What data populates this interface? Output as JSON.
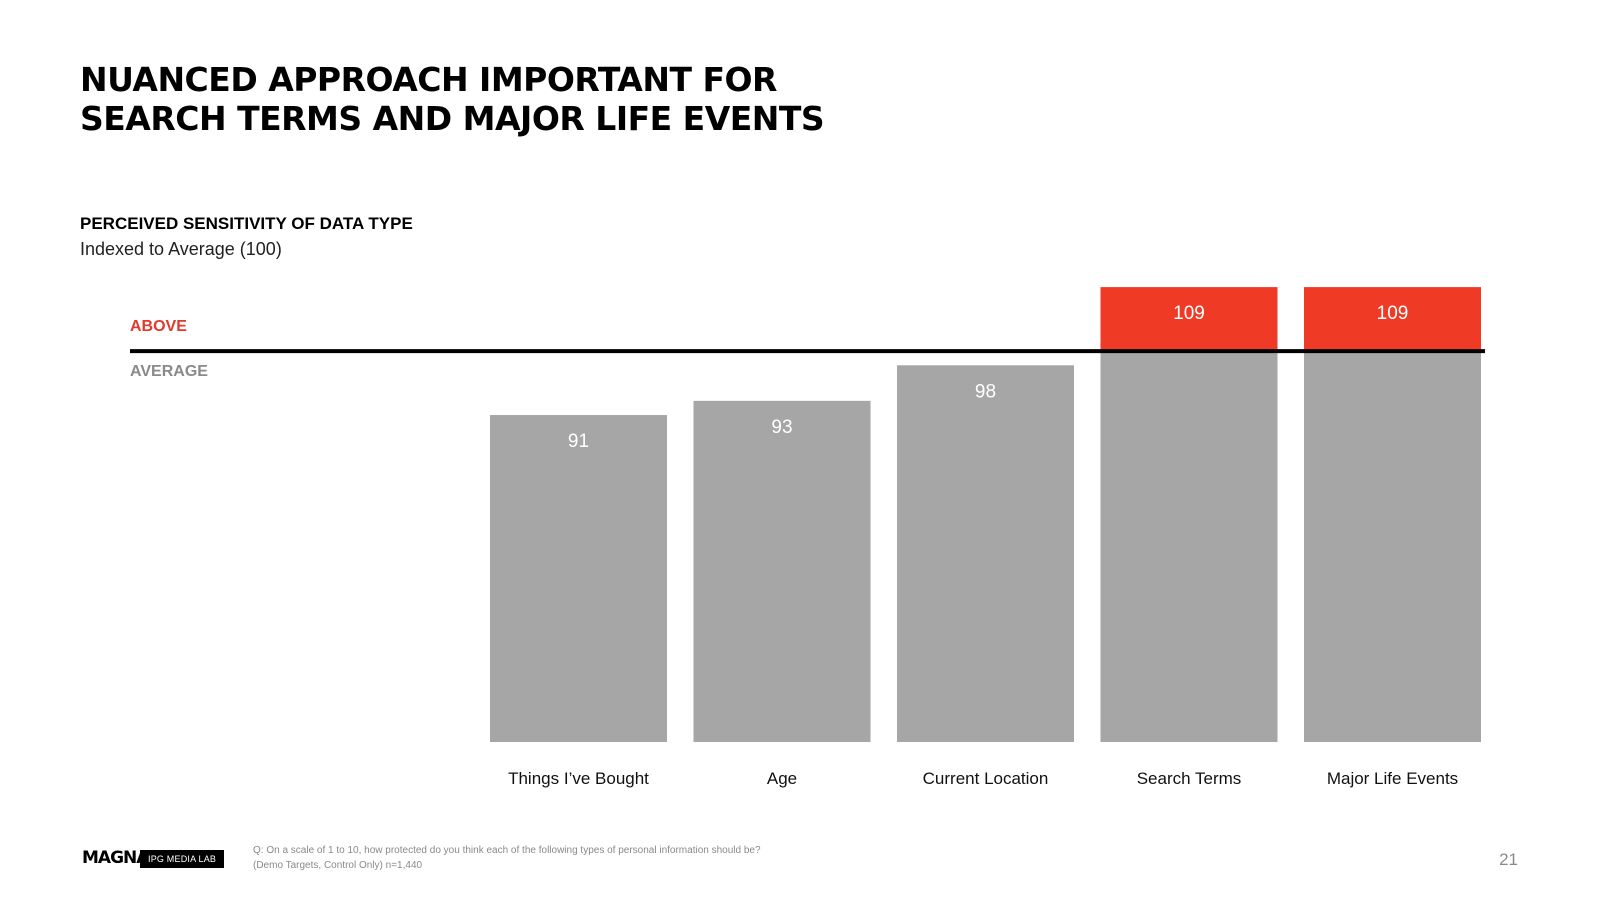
{
  "title_lines": [
    "NUANCED APPROACH IMPORTANT  FOR",
    "SEARCH TERMS AND MAJOR LIFE EVENTS"
  ],
  "subtitle": "PERCEIVED SENSITIVITY OF DATA TYPE",
  "subnote": "Indexed to Average (100)",
  "above_label": "ABOVE",
  "average_label": "AVERAGE",
  "colors": {
    "below": "#a6a6a6",
    "above": "#ef3a26",
    "line": "#000000",
    "above_text": "#e03a2a",
    "average_text": "#8a8a8a"
  },
  "chart_data": {
    "type": "bar",
    "categories": [
      "Things I’ve Bought",
      "Age",
      "Current Location",
      "Search Terms",
      "Major Life Events"
    ],
    "values": [
      91,
      93,
      98,
      109,
      109
    ],
    "baseline": 100,
    "ylim": [
      45,
      110
    ],
    "data_labels": [
      "91",
      "93",
      "98",
      "109",
      "109"
    ],
    "grid": false,
    "legend": "none"
  },
  "footer": {
    "logo": "MAGNA",
    "badge": "IPG MEDIA LAB",
    "question": "Q: On a scale of 1 to 10, how protected do you think each of the following types of personal information should be?",
    "sample": "(Demo Targets, Control Only) n=1,440",
    "page": "21"
  }
}
